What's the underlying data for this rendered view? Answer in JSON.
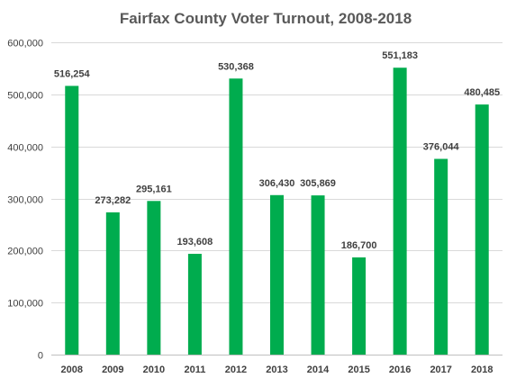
{
  "chart_data": {
    "type": "bar",
    "title": "Fairfax County Voter Turnout, 2008-2018",
    "xlabel": "",
    "ylabel": "",
    "categories": [
      "2008",
      "2009",
      "2010",
      "2011",
      "2012",
      "2013",
      "2014",
      "2015",
      "2016",
      "2017",
      "2018"
    ],
    "values": [
      516254,
      273282,
      295161,
      193608,
      530368,
      306430,
      305869,
      186700,
      551183,
      376044,
      480485
    ],
    "data_labels": [
      "516,254",
      "273,282",
      "295,161",
      "193,608",
      "530,368",
      "306,430",
      "305,869",
      "186,700",
      "551,183",
      "376,044",
      "480,485"
    ],
    "ylim": [
      0,
      600000
    ],
    "yticks": [
      0,
      100000,
      200000,
      300000,
      400000,
      500000,
      600000
    ],
    "ytick_labels": [
      "0",
      "100,000",
      "200,000",
      "300,000",
      "400,000",
      "500,000",
      "600,000"
    ],
    "grid": true,
    "legend": "none",
    "colors": {
      "bar": "#00ac4e",
      "grid": "#d9d9d9",
      "axis": "#bfbfbf",
      "text": "#404040",
      "title": "#595959"
    }
  }
}
